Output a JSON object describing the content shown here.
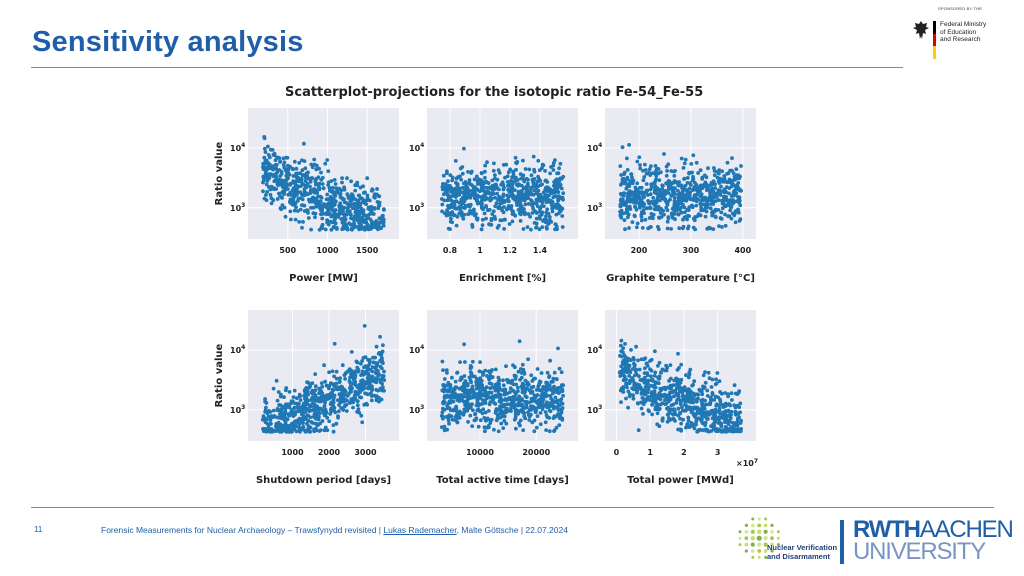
{
  "header": {
    "title": "Sensitivity analysis",
    "sponsor_small": "SPONSORED BY THE",
    "ministry_line1": "Federal Ministry",
    "ministry_line2": "of Education",
    "ministry_line3": "and Research"
  },
  "chart_title": "Scatterplot-projections for the isotopic ratio Fe-54_Fe-55",
  "footer": {
    "page_number": "11",
    "text_before": "Forensic Measurements for Nuclear Archaeology – Trawsfynydd revisited  |  ",
    "author_underlined": "Lukas Rademacher",
    "text_after": ", Malte Göttsche  |  22.07.2024",
    "nvd_line1": "Nuclear Verification",
    "nvd_line2": "and Disarmament",
    "rwth_bold": "RWTH",
    "rwth_light": "AACHEN",
    "rwth_line2": "UNIVERSITY"
  },
  "colors": {
    "accent": "#1f5ea8",
    "point": "#1f77b4",
    "panel_bg": "#eaeaf2"
  },
  "chart_data": [
    {
      "type": "scatter",
      "xlabel": "Power [MW]",
      "ylabel": "Ratio value",
      "xticks": [
        500,
        1000,
        1500
      ],
      "xlim": [
        100,
        1800
      ],
      "yscale": "log",
      "yticks": [
        "10^4",
        "10^3"
      ],
      "ylim": [
        350,
        40000
      ],
      "trend": "decreasing",
      "points": 700
    },
    {
      "type": "scatter",
      "xlabel": "Enrichment [%]",
      "ylabel": "",
      "xticks": [
        0.8,
        1.0,
        1.2,
        1.4
      ],
      "xlim": [
        0.7,
        1.6
      ],
      "yscale": "log",
      "yticks": [
        "10^4",
        "10^3"
      ],
      "ylim": [
        350,
        40000
      ],
      "trend": "flat",
      "points": 700
    },
    {
      "type": "scatter",
      "xlabel": "Graphite temperature [°C]",
      "ylabel": "",
      "xticks": [
        200,
        300,
        400
      ],
      "xlim": [
        150,
        410
      ],
      "yscale": "log",
      "yticks": [
        "10^4",
        "10^3"
      ],
      "ylim": [
        350,
        40000
      ],
      "trend": "flat",
      "points": 700
    },
    {
      "type": "scatter",
      "xlabel": "Shutdown period [days]",
      "ylabel": "Ratio value",
      "xticks": [
        1000,
        2000,
        3000
      ],
      "xlim": [
        0,
        3700
      ],
      "yscale": "log",
      "yticks": [
        "10^4",
        "10^3"
      ],
      "ylim": [
        350,
        40000
      ],
      "trend": "increasing",
      "points": 700
    },
    {
      "type": "scatter",
      "xlabel": "Total active time [days]",
      "ylabel": "",
      "xticks": [
        10000,
        20000
      ],
      "xlim": [
        2000,
        26000
      ],
      "yscale": "log",
      "yticks": [
        "10^4",
        "10^3"
      ],
      "ylim": [
        350,
        40000
      ],
      "trend": "flat",
      "points": 700
    },
    {
      "type": "scatter",
      "xlabel": "Total power [MWd]",
      "ylabel": "",
      "xticks": [
        "0",
        "1",
        "2",
        "3"
      ],
      "x_multiplier": "×10^7",
      "xlim": [
        -0.1,
        3.9
      ],
      "yscale": "log",
      "yticks": [
        "10^4",
        "10^3"
      ],
      "ylim": [
        350,
        40000
      ],
      "trend": "decreasing",
      "points": 700
    }
  ]
}
